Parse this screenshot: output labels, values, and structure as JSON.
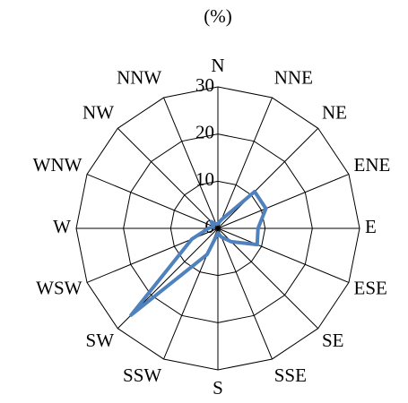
{
  "chart_data": {
    "type": "radar",
    "title": "(%)",
    "categories": [
      "N",
      "NNE",
      "NE",
      "ENE",
      "E",
      "ESE",
      "SE",
      "SSE",
      "S",
      "SSW",
      "SW",
      "WSW",
      "W",
      "WNW",
      "NW",
      "NNW"
    ],
    "series": [
      {
        "name": null,
        "color": "#4f81bd",
        "values": [
          1,
          2,
          11,
          11,
          8.5,
          9,
          4,
          2,
          1,
          6,
          26,
          6,
          2,
          1,
          2,
          1
        ]
      }
    ],
    "rlim": [
      0,
      30
    ],
    "rticks": [
      0,
      10,
      20,
      30
    ],
    "grid": true
  }
}
